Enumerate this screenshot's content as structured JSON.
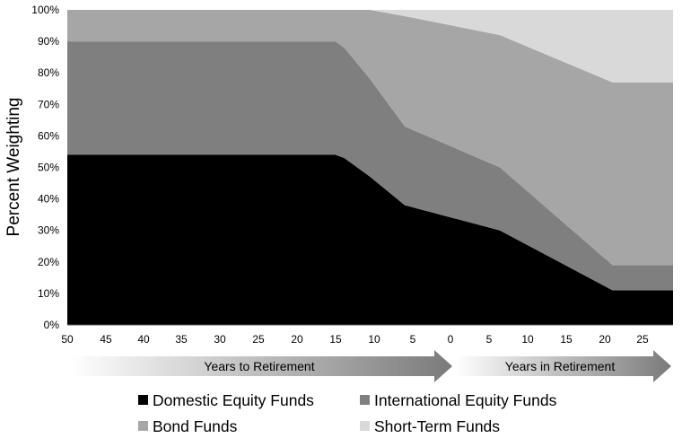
{
  "chart_data": {
    "type": "area",
    "stacked": true,
    "ylabel": "Percent Weighting",
    "ylim": [
      0,
      100
    ],
    "y_ticks": [
      "0%",
      "10%",
      "20%",
      "30%",
      "40%",
      "50%",
      "60%",
      "70%",
      "80%",
      "90%",
      "100%"
    ],
    "x_tick_labels": [
      "50",
      "45",
      "40",
      "35",
      "30",
      "25",
      "20",
      "15",
      "10",
      "5",
      "0",
      "5",
      "10",
      "15",
      "20",
      "25"
    ],
    "x_unit_note": "years relative to retirement: negative = years to retirement, positive = years in retirement",
    "x": [
      -50,
      -19,
      -18,
      -15,
      -11,
      0,
      13,
      20
    ],
    "x_range": [
      -50,
      20
    ],
    "series": [
      {
        "name": "Domestic Equity Funds",
        "color": "#000000",
        "values": [
          54,
          54,
          53,
          47,
          38,
          30,
          11,
          11
        ]
      },
      {
        "name": "International Equity Funds",
        "color": "#7f7f7f",
        "values": [
          36,
          36,
          35,
          31,
          25,
          20,
          8,
          8
        ]
      },
      {
        "name": "Bond Funds",
        "color": "#a6a6a6",
        "values": [
          10,
          10,
          12,
          22,
          35,
          42,
          58,
          58
        ]
      },
      {
        "name": "Short-Term Funds",
        "color": "#d9d9d9",
        "values": [
          0,
          0,
          0,
          0,
          2,
          8,
          23,
          23
        ]
      }
    ],
    "arrows": {
      "to_retirement": "Years to Retirement",
      "in_retirement": "Years in Retirement"
    },
    "legend_position": "bottom",
    "grid": false
  }
}
